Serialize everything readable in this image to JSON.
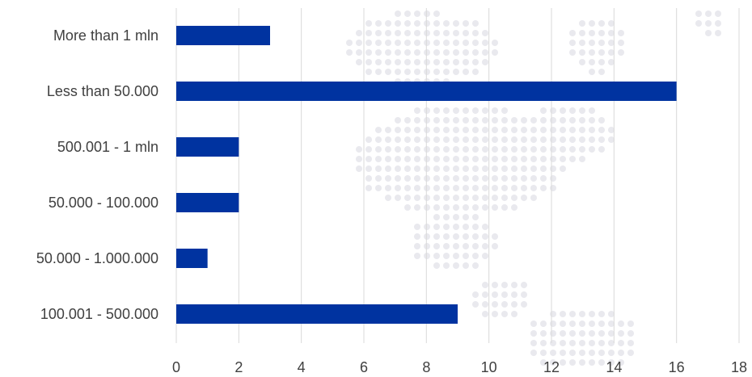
{
  "chart_data": {
    "type": "bar",
    "orientation": "horizontal",
    "categories": [
      "More than 1 mln",
      "Less than 50.000",
      "500.001 - 1 mln",
      "50.000 - 100.000",
      "50.000 - 1.000.000",
      "100.001 - 500.000"
    ],
    "values": [
      3,
      16,
      2,
      2,
      1,
      9
    ],
    "xlim": [
      0,
      18
    ],
    "xticks": [
      "0",
      "2",
      "4",
      "6",
      "8",
      "10",
      "12",
      "14",
      "16",
      "18"
    ],
    "grid": true,
    "bar_color": "#0033a0",
    "grid_color": "#d9d9d9",
    "label_color": "#404040",
    "background_decoration": "faint dotted world map",
    "legend": "none",
    "title": "",
    "xlabel": "",
    "ylabel": ""
  }
}
